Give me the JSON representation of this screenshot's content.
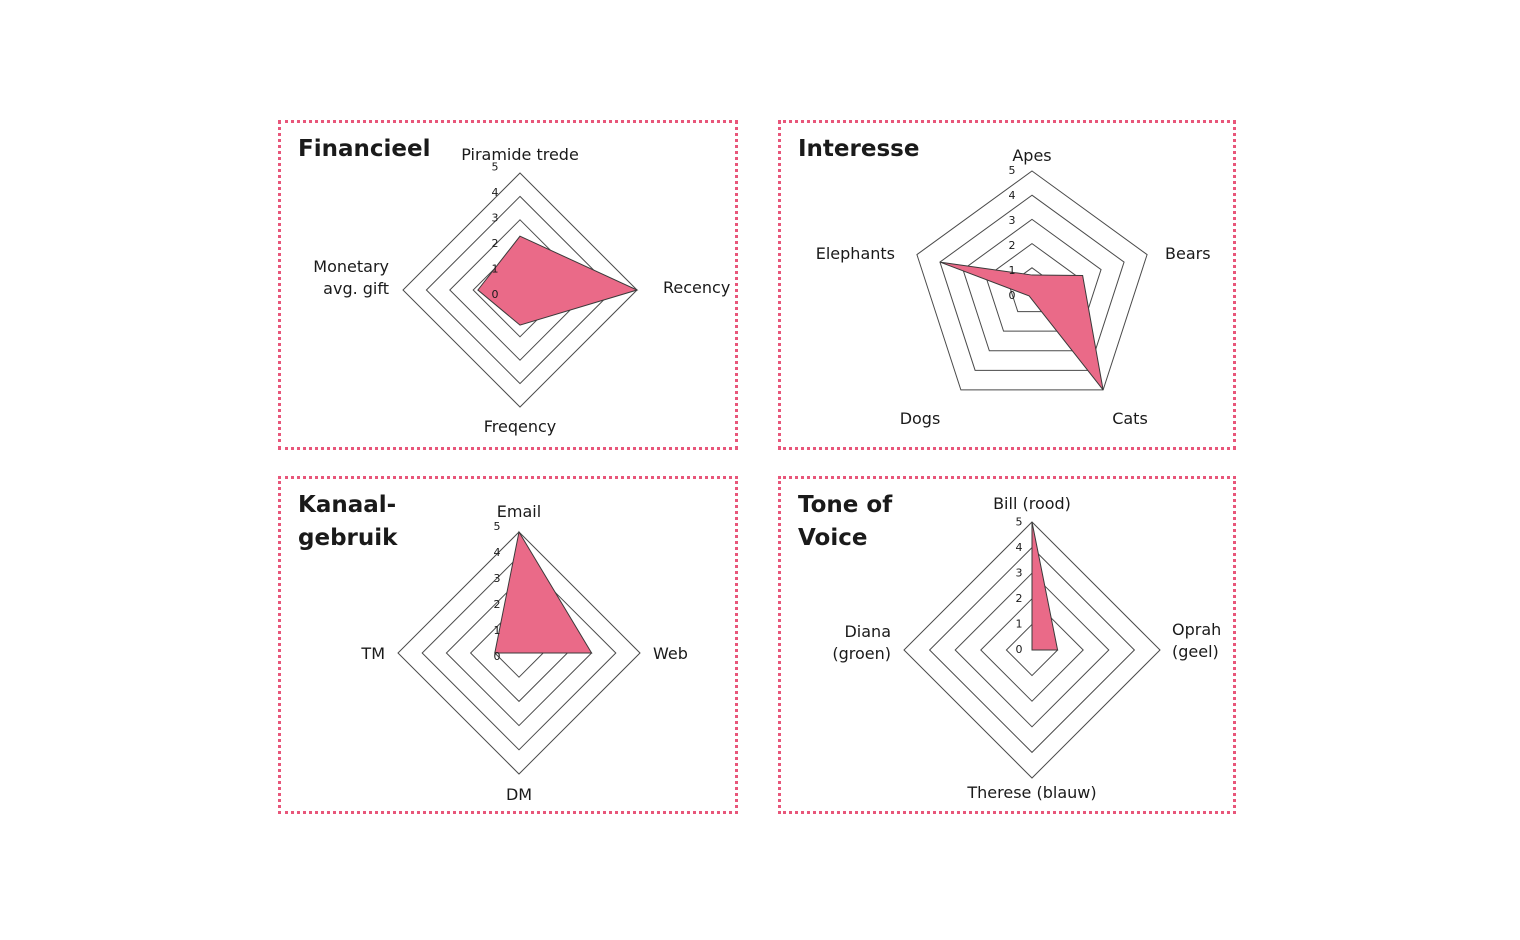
{
  "colors": {
    "accent": "#e8567a",
    "fill": "#ea6a88"
  },
  "chart_data": [
    {
      "type": "radar",
      "title": "Financieel",
      "axes": [
        "Piramide trede",
        "Recency",
        "Freqency",
        "Monetary\navg. gift"
      ],
      "ticks": [
        "0",
        "1",
        "2",
        "3",
        "4",
        "5"
      ],
      "values": [
        2.3,
        5,
        1.5,
        1.8
      ],
      "range": [
        0,
        5
      ]
    },
    {
      "type": "radar",
      "title": "Interesse",
      "axes": [
        "Apes",
        "Bears",
        "Cats",
        "Dogs",
        "Elephants"
      ],
      "ticks": [
        "0",
        "1",
        "2",
        "3",
        "4",
        "5"
      ],
      "values": [
        0.7,
        2.2,
        5,
        0.2,
        4
      ],
      "range": [
        0,
        5
      ]
    },
    {
      "type": "radar",
      "title": "Kanaal-\ngebruik",
      "axes": [
        "Email",
        "Web",
        "DM",
        "TM"
      ],
      "ticks": [
        "0",
        "1",
        "2",
        "3",
        "4",
        "5"
      ],
      "values": [
        5,
        3,
        0,
        1
      ],
      "range": [
        0,
        5
      ]
    },
    {
      "type": "radar",
      "title": "Tone of\nVoice",
      "axes": [
        "Bill (rood)",
        "Oprah\n(geel)",
        "Therese (blauw)",
        "Diana\n(groen)"
      ],
      "ticks": [
        "0",
        "1",
        "2",
        "3",
        "4",
        "5"
      ],
      "values": [
        5,
        1,
        0,
        0
      ],
      "range": [
        0,
        5
      ]
    }
  ]
}
